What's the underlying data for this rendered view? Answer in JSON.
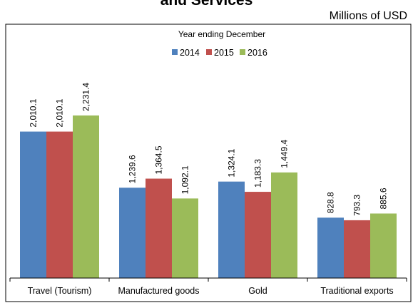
{
  "chart_data": {
    "type": "bar",
    "title": "and Services",
    "units": "Millions of USD",
    "subtitle": "Year ending December",
    "legend_position": "top",
    "categories": [
      "Travel (Tourism)",
      "Manufactured goods",
      "Gold",
      "Traditional exports"
    ],
    "series": [
      {
        "name": "2014",
        "color": "#4F81BD",
        "values": [
          2010.1,
          1239.6,
          1324.1,
          828.8
        ],
        "labels": [
          "2,010.1",
          "1,239.6",
          "1,324.1",
          "828.8"
        ]
      },
      {
        "name": "2015",
        "color": "#C0504D",
        "values": [
          2010.1,
          1364.5,
          1183.3,
          793.3
        ],
        "labels": [
          "2,010.1",
          "1,364.5",
          "1,183.3",
          "793.3"
        ]
      },
      {
        "name": "2016",
        "color": "#9BBB59",
        "values": [
          2231.4,
          1092.1,
          1449.4,
          885.6
        ],
        "labels": [
          "2,231.4",
          "1,092.1",
          "1,449.4",
          "885.6"
        ]
      }
    ],
    "ylim": [
      0,
      3000
    ],
    "y_axis_visible": false,
    "grid": false
  }
}
